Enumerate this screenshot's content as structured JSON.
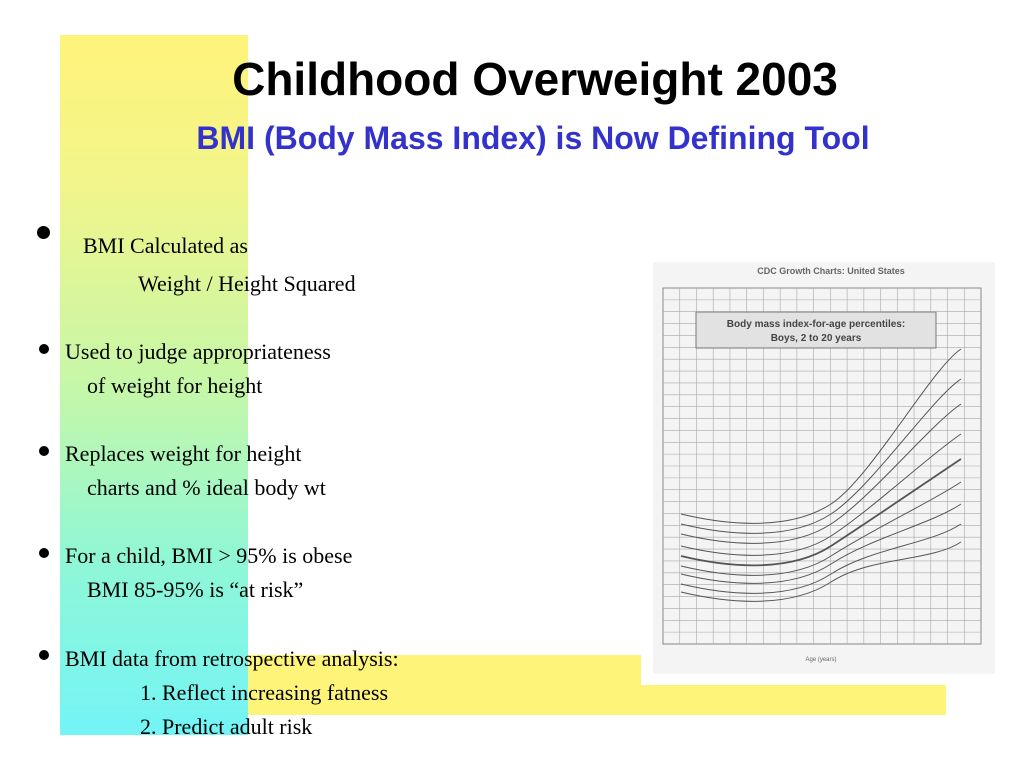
{
  "slide": {
    "title": "Childhood Overweight 2003",
    "subtitle": "BMI (Body Mass Index) is Now Defining Tool"
  },
  "bullets": [
    {
      "line1": "BMI Calculated as",
      "line2": "Weight / Height Squared"
    },
    {
      "line1": "Used to judge appropriateness",
      "line2": "of weight for height"
    },
    {
      "line1": "Replaces weight for height",
      "line2": "charts and % ideal body wt"
    },
    {
      "line1": "For a child, BMI > 95% is obese",
      "line2": "BMI 85-95% is “at risk”"
    },
    {
      "line1": "BMI data from retrospective analysis:",
      "line2": "1. Reflect increasing fatness",
      "line3": "2. Predict adult risk"
    }
  ],
  "chart_image": {
    "header": "CDC Growth Charts: United States",
    "caption_line1": "Body mass index-for-age percentiles:",
    "caption_line2": "Boys, 2 to 20 years",
    "x_axis_label": "Age (years)"
  },
  "colors": {
    "title": "#000000",
    "subtitle": "#3333cc",
    "bar_top": "#fff47a",
    "bar_bottom": "#74f4f5"
  }
}
